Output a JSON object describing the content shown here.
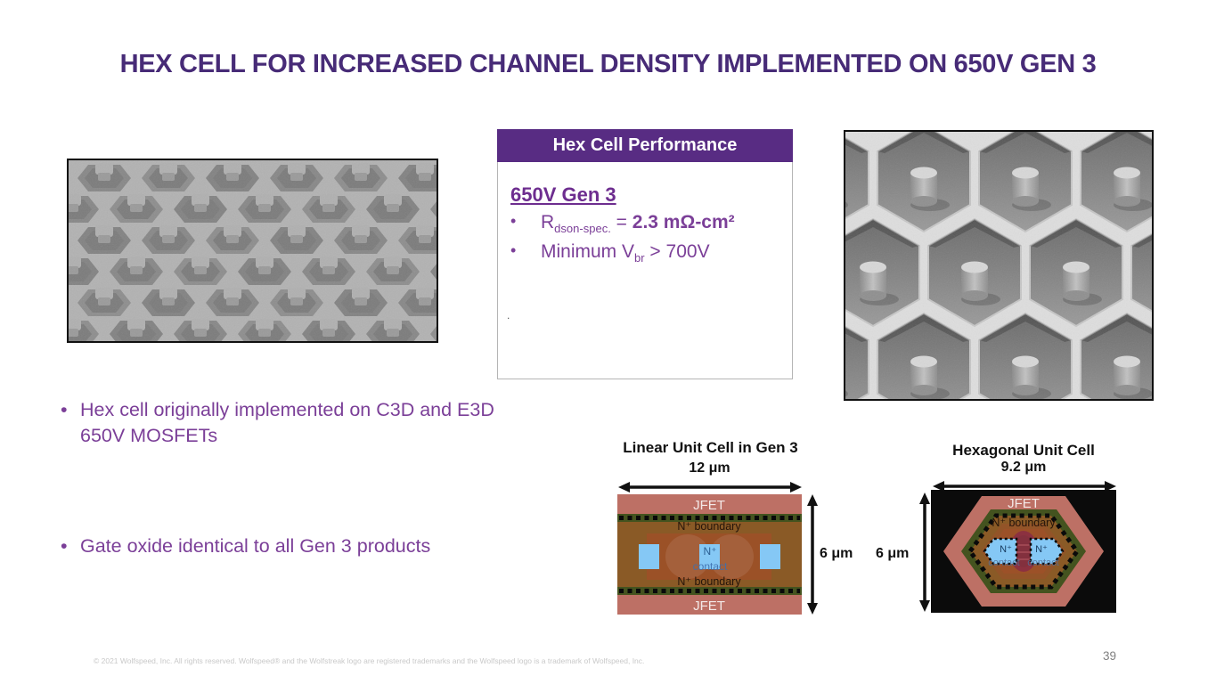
{
  "slide": {
    "title": "HEX CELL FOR INCREASED CHANNEL DENSITY IMPLEMENTED ON 650V GEN 3",
    "page_number": "39",
    "footer": "© 2021 Wolfspeed, Inc. All rights reserved. Wolfspeed® and the Wolfstreak logo are registered trademarks and the Wolfspeed logo is a trademark of Wolfspeed, Inc."
  },
  "performance_box": {
    "header": "Hex Cell Performance",
    "subtitle": "650V Gen 3",
    "rdson_prefix": "R",
    "rdson_sub": "dson-spec.",
    "rdson_equals": " = ",
    "rdson_value": "2.3 mΩ-cm²",
    "vbr_prefix": "Minimum V",
    "vbr_sub": "br",
    "vbr_suffix": " > 700V",
    "stray_mark": "."
  },
  "body_bullets": {
    "marker": "•",
    "b1_line1": "Hex cell originally implemented on C3D and E3D",
    "b1_line2": "650V MOSFETs",
    "b2": "Gate oxide identical to all Gen 3 products"
  },
  "linear_cell": {
    "title": "Linear Unit Cell in Gen 3",
    "width_label": "12 μm",
    "height_label": "6 μm",
    "jfet": "JFET",
    "n_boundary": "N⁺ boundary",
    "n_contact_line1": "N⁺",
    "n_contact_line2": "contact"
  },
  "hex_cell": {
    "title": "Hexagonal Unit Cell",
    "width_label": "9.2 μm",
    "height_label": "6 μm",
    "jfet": "JFET",
    "n_boundary": "N⁺ boundary",
    "n_plus": "N⁺",
    "contact": "contact"
  },
  "colors": {
    "title_purple": "#472b77",
    "header_purple": "#582c83",
    "text_purple": "#7b3f98",
    "jfet_salmon": "#bd7065",
    "boundary_green": "#44531f",
    "pwell_brown": "#8a5a26",
    "inner_brown": "#9b5127",
    "contact_blue": "#85c8f5",
    "center_maroon": "#8c3140",
    "footer_gray": "#c9c9c9"
  }
}
